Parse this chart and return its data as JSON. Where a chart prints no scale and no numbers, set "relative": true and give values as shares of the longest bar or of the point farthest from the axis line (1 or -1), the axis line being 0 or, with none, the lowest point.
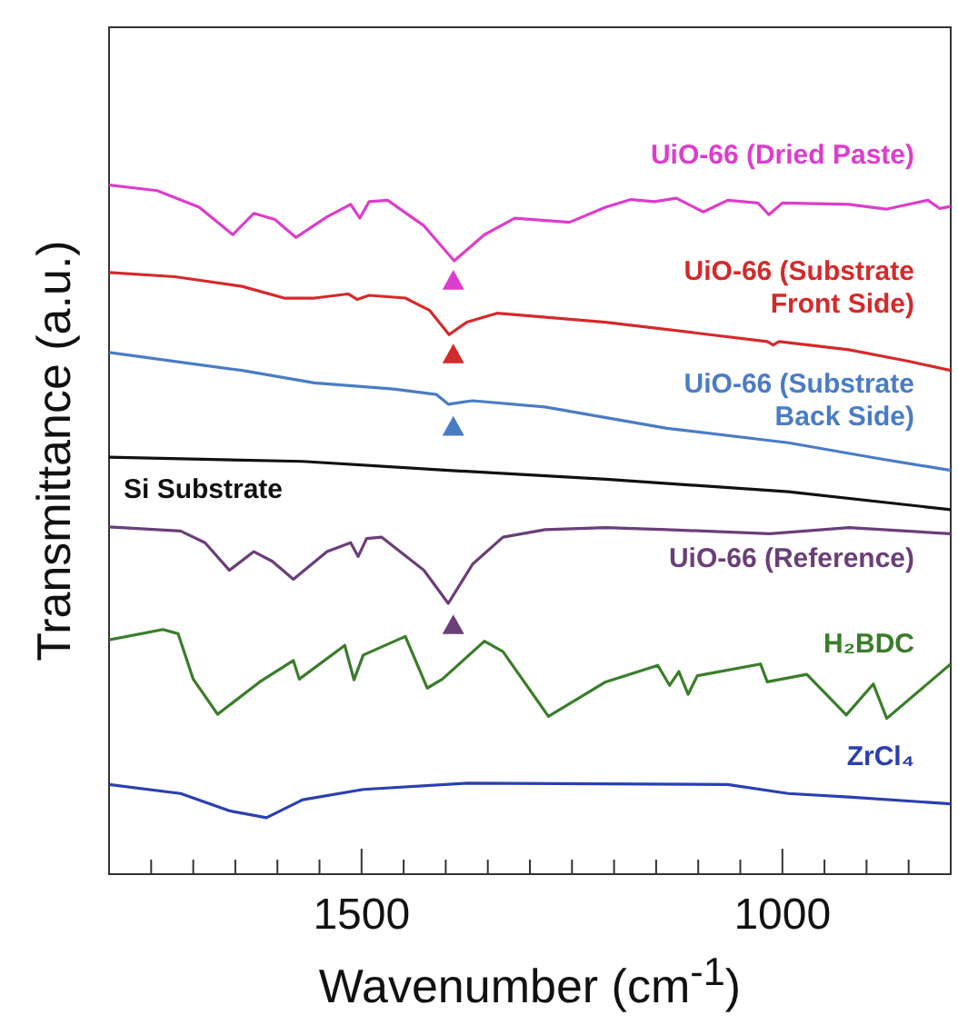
{
  "chart_data": {
    "type": "line",
    "relative": true,
    "xlabel": "Wavenumber (cm$^{-1}$)",
    "ylabel": "Transmittance (a.u.)",
    "xlim": [
      1800,
      800
    ],
    "xticks": [
      {
        "value": 1750,
        "label": null
      },
      {
        "value": 1700,
        "label": null
      },
      {
        "value": 1650,
        "label": null
      },
      {
        "value": 1600,
        "label": null
      },
      {
        "value": 1550,
        "label": null
      },
      1500,
      {
        "value": 1450,
        "label": null
      },
      {
        "value": 1400,
        "label": null
      },
      {
        "value": 1350,
        "label": null
      },
      {
        "value": 1300,
        "label": null
      },
      {
        "value": 1250,
        "label": null
      },
      {
        "value": 1200,
        "label": null
      },
      {
        "value": 1150,
        "label": null
      },
      {
        "value": 1100,
        "label": null
      },
      {
        "value": 1050,
        "label": null
      },
      1000,
      {
        "value": 950,
        "label": null
      },
      {
        "value": 900,
        "label": null
      },
      {
        "value": 850,
        "label": null
      }
    ],
    "tick_labels": "x",
    "marker": "none",
    "series": [
      {
        "name": "UiO-66 (Dried Paste)",
        "color": "#dd3dcc",
        "x": [
          1800,
          1743,
          1693,
          1653,
          1628,
          1603,
          1578,
          1541,
          1513,
          1502,
          1491,
          1469,
          1426,
          1390,
          1354,
          1318,
          1253,
          1210,
          1180,
          1152,
          1126,
          1094,
          1065,
          1029,
          1016,
          1000,
          921,
          877,
          827,
          813,
          800
        ],
        "values": [
          1.0,
          0.992,
          0.968,
          0.928,
          0.959,
          0.95,
          0.924,
          0.954,
          0.972,
          0.952,
          0.976,
          0.978,
          0.941,
          0.89,
          0.928,
          0.952,
          0.946,
          0.968,
          0.979,
          0.976,
          0.981,
          0.961,
          0.978,
          0.974,
          0.957,
          0.974,
          0.972,
          0.965,
          0.978,
          0.966,
          0.969
        ]
      },
      {
        "name": "UiO-66 (Substrate Front Side)",
        "color": "#d42a2a",
        "x": [
          1800,
          1722,
          1642,
          1592,
          1556,
          1516,
          1505,
          1491,
          1448,
          1419,
          1396,
          1375,
          1339,
          1210,
          1018,
          1011,
          1004,
          921,
          849,
          800
        ],
        "values": [
          0.873,
          0.867,
          0.853,
          0.836,
          0.836,
          0.842,
          0.834,
          0.84,
          0.836,
          0.818,
          0.783,
          0.801,
          0.814,
          0.801,
          0.773,
          0.768,
          0.773,
          0.761,
          0.744,
          0.731
        ]
      },
      {
        "name": "UiO-66 (Substrate Back Side)",
        "color": "#4a7cc4",
        "x": [
          1800,
          1642,
          1556,
          1462,
          1411,
          1397,
          1368,
          1282,
          1137,
          993,
          885,
          800
        ],
        "values": [
          0.757,
          0.731,
          0.713,
          0.704,
          0.696,
          0.682,
          0.687,
          0.678,
          0.647,
          0.626,
          0.603,
          0.586
        ]
      },
      {
        "name": "Si Substrate",
        "color": "#111111",
        "x": [
          1800,
          1570,
          1397,
          1210,
          993,
          800
        ],
        "values": [
          0.605,
          0.599,
          0.586,
          0.573,
          0.555,
          0.529
        ]
      },
      {
        "name": "UiO-66 (Reference)",
        "color": "#6a3f78",
        "x": [
          1800,
          1715,
          1686,
          1657,
          1628,
          1606,
          1581,
          1541,
          1513,
          1504,
          1494,
          1476,
          1426,
          1397,
          1368,
          1332,
          1282,
          1210,
          1137,
          1015,
          921,
          800
        ],
        "values": [
          0.504,
          0.498,
          0.481,
          0.441,
          0.468,
          0.454,
          0.428,
          0.468,
          0.481,
          0.461,
          0.487,
          0.489,
          0.441,
          0.393,
          0.45,
          0.489,
          0.5,
          0.503,
          0.5,
          0.494,
          0.503,
          0.494
        ]
      },
      {
        "name": "H₂BDC",
        "color": "#3a7d2a",
        "x": [
          1800,
          1736,
          1718,
          1700,
          1671,
          1621,
          1581,
          1574,
          1520,
          1509,
          1498,
          1448,
          1422,
          1404,
          1354,
          1332,
          1278,
          1210,
          1148,
          1134,
          1123,
          1112,
          1101,
          1026,
          1018,
          971,
          924,
          892,
          876,
          800
        ],
        "values": [
          0.34,
          0.355,
          0.349,
          0.283,
          0.232,
          0.279,
          0.31,
          0.283,
          0.332,
          0.282,
          0.318,
          0.345,
          0.27,
          0.283,
          0.338,
          0.323,
          0.229,
          0.279,
          0.303,
          0.274,
          0.294,
          0.261,
          0.288,
          0.305,
          0.279,
          0.29,
          0.231,
          0.276,
          0.226,
          0.305
        ]
      },
      {
        "name": "ZrCl₄",
        "color": "#2a3fb0",
        "x": [
          1800,
          1715,
          1657,
          1613,
          1570,
          1498,
          1375,
          1065,
          993,
          921,
          800
        ],
        "values": [
          0.13,
          0.117,
          0.092,
          0.082,
          0.108,
          0.123,
          0.132,
          0.13,
          0.117,
          0.112,
          0.102
        ]
      },
      {
        "type": "scatter",
        "marker": "triangle",
        "color": "#dd3dcc",
        "x": [
          1391
        ],
        "values": [
          0.861
        ]
      },
      {
        "type": "scatter",
        "marker": "triangle",
        "color": "#d42a2a",
        "x": [
          1391
        ],
        "values": [
          0.754
        ]
      },
      {
        "type": "scatter",
        "marker": "triangle",
        "color": "#4a7cc4",
        "x": [
          1391
        ],
        "values": [
          0.649
        ]
      },
      {
        "type": "scatter",
        "marker": "triangle",
        "color": "#6a3f78",
        "x": [
          1391
        ],
        "values": [
          0.361
        ]
      }
    ]
  }
}
